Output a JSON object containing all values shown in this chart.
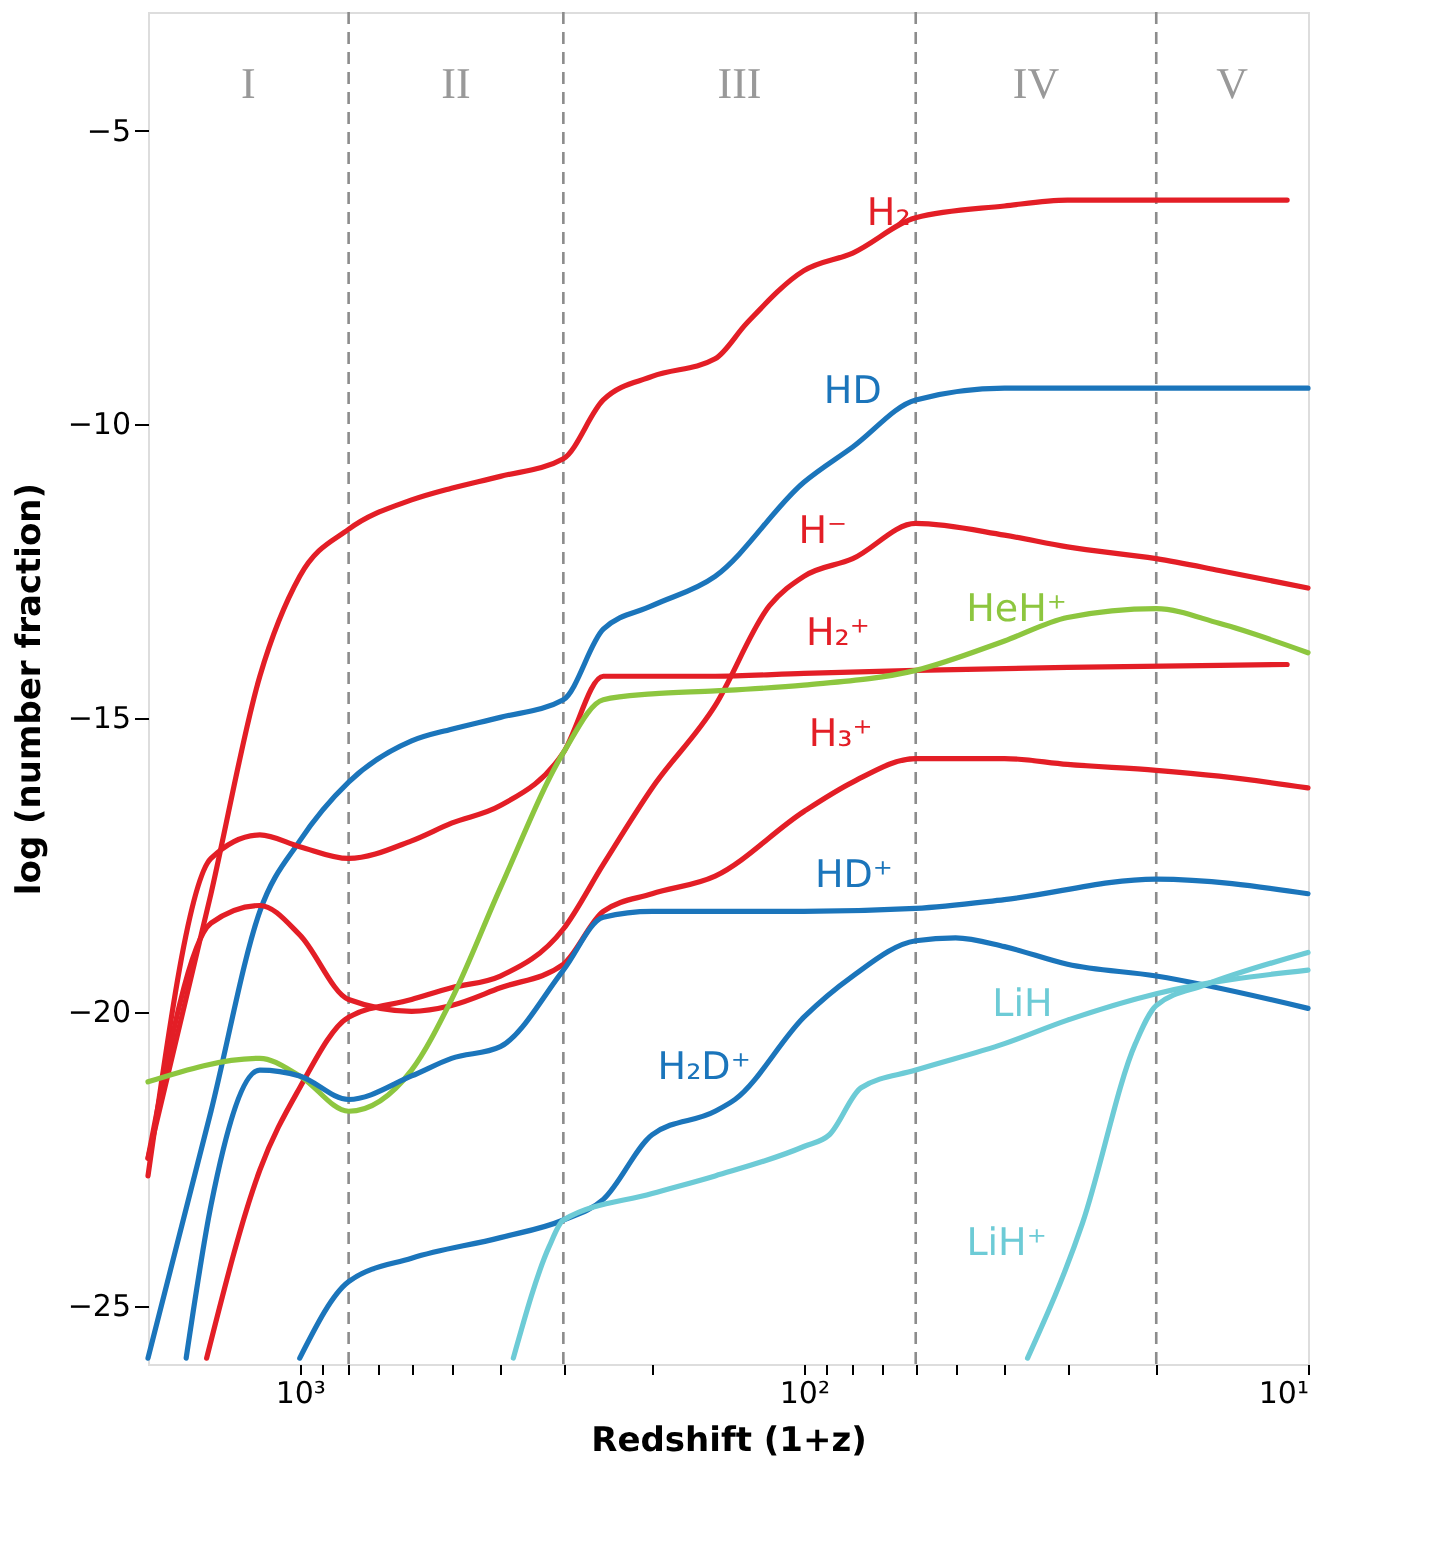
{
  "chart_data": {
    "type": "line",
    "xlabel": "Redshift (1+z)",
    "ylabel": "log (number fraction)",
    "log": "x",
    "xlim": [
      2000,
      10
    ],
    "ylim": [
      -26,
      -3
    ],
    "xticks": [
      {
        "value": 1000,
        "label": "10³"
      },
      {
        "value": 900,
        "label": null
      },
      {
        "value": 800,
        "label": null
      },
      {
        "value": 700,
        "label": null
      },
      {
        "value": 600,
        "label": null
      },
      {
        "value": 500,
        "label": null
      },
      {
        "value": 400,
        "label": null
      },
      {
        "value": 300,
        "label": null
      },
      {
        "value": 200,
        "label": null
      },
      {
        "value": 100,
        "label": "10²"
      },
      {
        "value": 90,
        "label": null
      },
      {
        "value": 80,
        "label": null
      },
      {
        "value": 70,
        "label": null
      },
      {
        "value": 60,
        "label": null
      },
      {
        "value": 50,
        "label": null
      },
      {
        "value": 40,
        "label": null
      },
      {
        "value": 30,
        "label": null
      },
      {
        "value": 20,
        "label": null
      },
      {
        "value": 10,
        "label": "10¹"
      }
    ],
    "yticks": [
      {
        "value": -5,
        "label": "−5"
      },
      {
        "value": -10,
        "label": "−10"
      },
      {
        "value": -15,
        "label": "−15"
      },
      {
        "value": -20,
        "label": "−20"
      },
      {
        "value": -25,
        "label": "−25"
      }
    ],
    "grid": false,
    "legend": false,
    "marker": "none",
    "line_style": "solid",
    "ref_lines": [
      {
        "axis": "x",
        "value": 800,
        "color": "#8c8c8c",
        "line_style": "dashed"
      },
      {
        "axis": "x",
        "value": 300,
        "color": "#8c8c8c",
        "line_style": "dashed"
      },
      {
        "axis": "x",
        "value": 60,
        "color": "#8c8c8c",
        "line_style": "dashed"
      },
      {
        "axis": "x",
        "value": 20,
        "color": "#8c8c8c",
        "line_style": "dashed"
      }
    ],
    "annotations": [
      "I",
      "II",
      "III",
      "IV",
      "V"
    ],
    "series": [
      {
        "name": "H₂",
        "color": "#e31e26",
        "x": [
          2000,
          1500,
          1200,
          1000,
          800,
          600,
          500,
          400,
          300,
          250,
          200,
          150,
          130,
          100,
          80,
          60,
          40,
          30,
          20,
          15,
          11
        ],
        "values": [
          -22.5,
          -18.0,
          -14.3,
          -12.6,
          -11.8,
          -11.3,
          -11.1,
          -10.9,
          -10.6,
          -9.6,
          -9.2,
          -8.9,
          -8.3,
          -7.4,
          -7.1,
          -6.5,
          -6.3,
          -6.2,
          -6.2,
          -6.2,
          -6.2
        ]
      },
      {
        "name": "HD",
        "color": "#1b75bb",
        "x": [
          2000,
          1500,
          1200,
          1000,
          800,
          600,
          500,
          400,
          300,
          250,
          200,
          150,
          100,
          80,
          60,
          40,
          30,
          20,
          15,
          10
        ],
        "values": [
          -25.9,
          -21.7,
          -18.3,
          -17.1,
          -16.1,
          -15.4,
          -15.2,
          -15.0,
          -14.7,
          -13.5,
          -13.1,
          -12.6,
          -11.0,
          -10.4,
          -9.6,
          -9.4,
          -9.4,
          -9.4,
          -9.4,
          -9.4
        ]
      },
      {
        "name": "H⁻",
        "color": "#e31e26",
        "x": [
          1530,
          1200,
          1000,
          800,
          600,
          500,
          400,
          300,
          250,
          200,
          150,
          117,
          100,
          80,
          60,
          40,
          30,
          20,
          15,
          10
        ],
        "values": [
          -25.9,
          -22.7,
          -21.3,
          -20.1,
          -19.8,
          -19.6,
          -19.4,
          -18.6,
          -17.5,
          -16.2,
          -14.8,
          -13.1,
          -12.6,
          -12.3,
          -11.7,
          -11.9,
          -12.1,
          -12.3,
          -12.5,
          -12.8
        ]
      },
      {
        "name": "H₂⁺",
        "color": "#e31e26",
        "x": [
          2000,
          1500,
          1200,
          1000,
          800,
          600,
          500,
          400,
          300,
          250,
          200,
          150,
          100,
          60,
          30,
          11
        ],
        "values": [
          -22.8,
          -17.4,
          -17.0,
          -17.2,
          -17.4,
          -17.1,
          -16.8,
          -16.5,
          -15.6,
          -14.3,
          -14.3,
          -14.3,
          -14.25,
          -14.2,
          -14.15,
          -14.1
        ]
      },
      {
        "name": "H₃⁺",
        "color": "#e31e26",
        "x": [
          2000,
          1500,
          1200,
          1000,
          800,
          600,
          500,
          400,
          300,
          250,
          200,
          150,
          100,
          80,
          60,
          40,
          30,
          20,
          15,
          10
        ],
        "values": [
          -22.5,
          -18.5,
          -18.2,
          -18.7,
          -19.8,
          -20.0,
          -19.9,
          -19.6,
          -19.2,
          -18.3,
          -18.0,
          -17.7,
          -16.6,
          -16.1,
          -15.7,
          -15.7,
          -15.8,
          -15.9,
          -16.0,
          -16.2
        ]
      },
      {
        "name": "HeH⁺",
        "color": "#8dc63f",
        "x": [
          2000,
          1200,
          1000,
          800,
          600,
          500,
          400,
          300,
          250,
          200,
          150,
          100,
          60,
          40,
          30,
          20,
          15,
          10
        ],
        "values": [
          -21.2,
          -20.8,
          -21.1,
          -21.7,
          -21.0,
          -19.8,
          -17.9,
          -15.6,
          -14.7,
          -14.6,
          -14.55,
          -14.45,
          -14.2,
          -13.7,
          -13.3,
          -13.15,
          -13.4,
          -13.9
        ]
      },
      {
        "name": "HD⁺",
        "color": "#1b75bb",
        "x": [
          1680,
          1500,
          1200,
          1000,
          800,
          600,
          500,
          400,
          300,
          250,
          200,
          150,
          100,
          60,
          40,
          20,
          10
        ],
        "values": [
          -25.9,
          -23.3,
          -21.0,
          -21.1,
          -21.5,
          -21.1,
          -20.8,
          -20.6,
          -19.3,
          -18.4,
          -18.3,
          -18.3,
          -18.3,
          -18.25,
          -18.1,
          -17.75,
          -18.0
        ]
      },
      {
        "name": "H₂D⁺",
        "color": "#1b75bb",
        "x": [
          1000,
          800,
          600,
          400,
          300,
          250,
          200,
          150,
          137,
          100,
          80,
          60,
          50,
          40,
          30,
          20,
          10
        ],
        "values": [
          -25.9,
          -24.6,
          -24.2,
          -23.85,
          -23.55,
          -23.2,
          -22.1,
          -21.7,
          -21.5,
          -20.1,
          -19.4,
          -18.8,
          -18.75,
          -18.9,
          -19.2,
          -19.4,
          -19.95
        ]
      },
      {
        "name": "LiH",
        "color": "#6dcbd6",
        "x": [
          377,
          320,
          300,
          200,
          150,
          100,
          89,
          77,
          60,
          40,
          30,
          20,
          10
        ],
        "values": [
          -25.9,
          -24.0,
          -23.55,
          -23.1,
          -22.8,
          -22.3,
          -22.1,
          -21.3,
          -21.0,
          -20.55,
          -20.15,
          -19.7,
          -19.3
        ]
      },
      {
        "name": "LiH⁺",
        "color": "#6dcbd6",
        "x": [
          36,
          28,
          22,
          20,
          16,
          10
        ],
        "values": [
          -25.9,
          -23.6,
          -20.55,
          -19.9,
          -19.55,
          -19.0
        ]
      }
    ]
  }
}
